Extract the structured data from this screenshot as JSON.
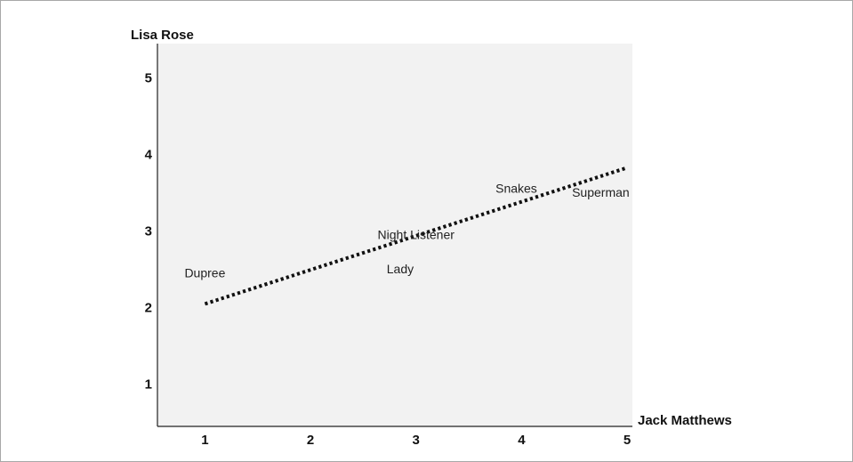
{
  "chart_data": {
    "type": "scatter",
    "title": "",
    "xlabel": "Jack Matthews",
    "ylabel": "Lisa Rose",
    "xlim": [
      0.55,
      5.05
    ],
    "ylim": [
      0.45,
      5.45
    ],
    "x_ticks": [
      "1",
      "2",
      "3",
      "4",
      "5"
    ],
    "y_ticks": [
      "1",
      "2",
      "3",
      "4",
      "5"
    ],
    "grid": false,
    "plot_background": "#f2f2f2",
    "axis_color": "#222222",
    "points": [
      {
        "label": "Dupree",
        "x": 1.0,
        "y": 2.4
      },
      {
        "label": "Night Listener",
        "x": 3.0,
        "y": 2.9
      },
      {
        "label": "Lady",
        "x": 2.85,
        "y": 2.45
      },
      {
        "label": "Snakes",
        "x": 3.95,
        "y": 3.5
      },
      {
        "label": "Superman",
        "x": 4.75,
        "y": 3.45
      }
    ],
    "trend_line": {
      "style": "dotted",
      "color": "#111111",
      "start": {
        "x": 1.0,
        "y": 2.05
      },
      "end": {
        "x": 4.98,
        "y": 3.82
      }
    }
  }
}
